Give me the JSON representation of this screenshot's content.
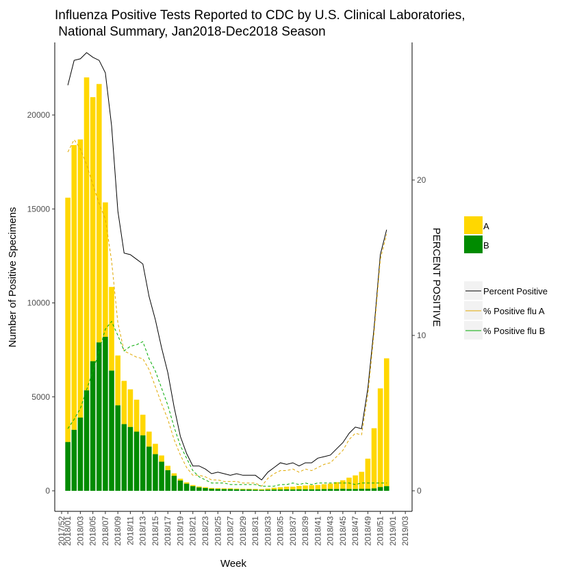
{
  "chart_data": {
    "type": "bar",
    "title": "Influenza Positive Tests Reported to CDC by U.S. Clinical Laboratories,",
    "subtitle": " National Summary, Jan2018-Dec2018 Season",
    "xlabel": "Week",
    "ylabel": "Number of Positive Specimens",
    "y2label": "PERCENT POSITIVE",
    "ylim": [
      0,
      23500
    ],
    "y2lim": [
      0,
      29.1
    ],
    "yticks": [
      0,
      5000,
      10000,
      15000,
      20000
    ],
    "y2ticks": [
      0,
      10,
      20
    ],
    "x_tick_labels": [
      "2017/52",
      "2018/01",
      "2018/03",
      "2018/05",
      "2018/07",
      "2018/09",
      "2018/11",
      "2018/13",
      "2018/15",
      "2018/17",
      "2018/19",
      "2018/21",
      "2018/23",
      "2018/25",
      "2018/27",
      "2018/29",
      "2018/31",
      "2018/33",
      "2018/35",
      "2018/37",
      "2018/39",
      "2018/41",
      "2018/43",
      "2018/45",
      "2018/47",
      "2018/49",
      "2018/51",
      "2019/01",
      "2019/03"
    ],
    "x_tick_positions": [
      0,
      1,
      3,
      5,
      7,
      9,
      11,
      13,
      15,
      17,
      19,
      21,
      23,
      25,
      27,
      29,
      31,
      33,
      35,
      37,
      39,
      41,
      43,
      45,
      47,
      49,
      51,
      53,
      55
    ],
    "bar_x": [
      1,
      2,
      3,
      4,
      5,
      6,
      7,
      8,
      9,
      10,
      11,
      12,
      13,
      14,
      15,
      16,
      17,
      18,
      19,
      20,
      21,
      22,
      23,
      24,
      25,
      26,
      27,
      28,
      29,
      30,
      31,
      32,
      33,
      34,
      35,
      36,
      37,
      38,
      39,
      40,
      41,
      42,
      43,
      44,
      45,
      46,
      47,
      48,
      49,
      50,
      51,
      52
    ],
    "series": [
      {
        "name": "A",
        "color": "#FFD700",
        "kind": "bar",
        "values": [
          13000,
          15150,
          14800,
          16650,
          14050,
          13750,
          7150,
          4450,
          2650,
          2300,
          2000,
          1700,
          1100,
          800,
          550,
          330,
          230,
          130,
          90,
          70,
          55,
          50,
          45,
          40,
          40,
          40,
          40,
          40,
          40,
          40,
          40,
          40,
          60,
          90,
          120,
          140,
          150,
          180,
          200,
          220,
          230,
          260,
          280,
          360,
          450,
          600,
          720,
          900,
          1600,
          3200,
          5250,
          6800
        ]
      },
      {
        "name": "B",
        "color": "#008B00",
        "kind": "bar",
        "values": [
          2600,
          3250,
          3900,
          5350,
          6900,
          7900,
          8200,
          6400,
          4550,
          3550,
          3400,
          3150,
          2950,
          2350,
          1950,
          1550,
          1100,
          800,
          550,
          380,
          250,
          180,
          150,
          110,
          100,
          90,
          90,
          80,
          70,
          70,
          60,
          50,
          60,
          70,
          70,
          80,
          70,
          80,
          80,
          80,
          80,
          90,
          100,
          100,
          110,
          100,
          100,
          110,
          110,
          130,
          200,
          250
        ]
      },
      {
        "name": "Percent Positive",
        "color": "#000000",
        "kind": "line",
        "values": [
          26.1,
          27.7,
          27.8,
          28.2,
          27.9,
          27.7,
          26.9,
          23.5,
          18.0,
          15.3,
          15.2,
          14.9,
          14.6,
          12.5,
          11.0,
          9.2,
          7.6,
          5.4,
          3.5,
          2.4,
          1.6,
          1.6,
          1.4,
          1.1,
          1.2,
          1.1,
          1.0,
          1.1,
          1.0,
          1.0,
          1.0,
          0.7,
          1.2,
          1.5,
          1.8,
          1.7,
          1.8,
          1.6,
          1.8,
          1.8,
          2.1,
          2.2,
          2.3,
          2.7,
          3.1,
          3.7,
          4.1,
          4.0,
          6.6,
          10.5,
          15.2,
          16.8
        ]
      },
      {
        "name": "% Positive flu A",
        "color": "#E0A800",
        "kind": "dashed",
        "values": [
          21.8,
          22.6,
          22.0,
          21.0,
          19.7,
          18.5,
          17.5,
          14.8,
          10.8,
          9.0,
          8.8,
          8.6,
          8.5,
          7.8,
          6.7,
          5.6,
          4.6,
          3.3,
          2.3,
          1.5,
          1.0,
          1.0,
          0.9,
          0.7,
          0.7,
          0.6,
          0.6,
          0.6,
          0.5,
          0.5,
          0.5,
          0.3,
          0.8,
          1.1,
          1.3,
          1.3,
          1.4,
          1.2,
          1.4,
          1.3,
          1.5,
          1.7,
          1.8,
          2.2,
          2.6,
          3.3,
          3.7,
          3.6,
          6.2,
          10.2,
          14.9,
          16.5
        ]
      },
      {
        "name": "% Positive flu B",
        "color": "#00AA00",
        "kind": "dashed",
        "values": [
          4.0,
          4.6,
          5.3,
          6.5,
          7.7,
          9.0,
          10.4,
          10.9,
          10.0,
          9.0,
          9.3,
          9.4,
          9.6,
          8.5,
          7.7,
          6.6,
          5.5,
          4.1,
          2.9,
          2.1,
          1.3,
          0.9,
          0.7,
          0.5,
          0.5,
          0.5,
          0.4,
          0.4,
          0.4,
          0.4,
          0.4,
          0.3,
          0.3,
          0.3,
          0.4,
          0.4,
          0.5,
          0.4,
          0.5,
          0.4,
          0.5,
          0.5,
          0.5,
          0.5,
          0.5,
          0.5,
          0.4,
          0.5,
          0.5,
          0.5,
          0.5,
          0.5
        ]
      }
    ],
    "legend_fill": {
      "items": [
        {
          "label": "A",
          "color": "#FFD700"
        },
        {
          "label": "B",
          "color": "#008B00"
        }
      ]
    },
    "legend_lines": {
      "items": [
        {
          "label": "Percent Positive",
          "color": "#000000"
        },
        {
          "label": "% Positive flu A",
          "color": "#E0A800"
        },
        {
          "label": "% Positive flu B",
          "color": "#00AA00"
        }
      ]
    },
    "grid": false,
    "legend_position": "right"
  }
}
